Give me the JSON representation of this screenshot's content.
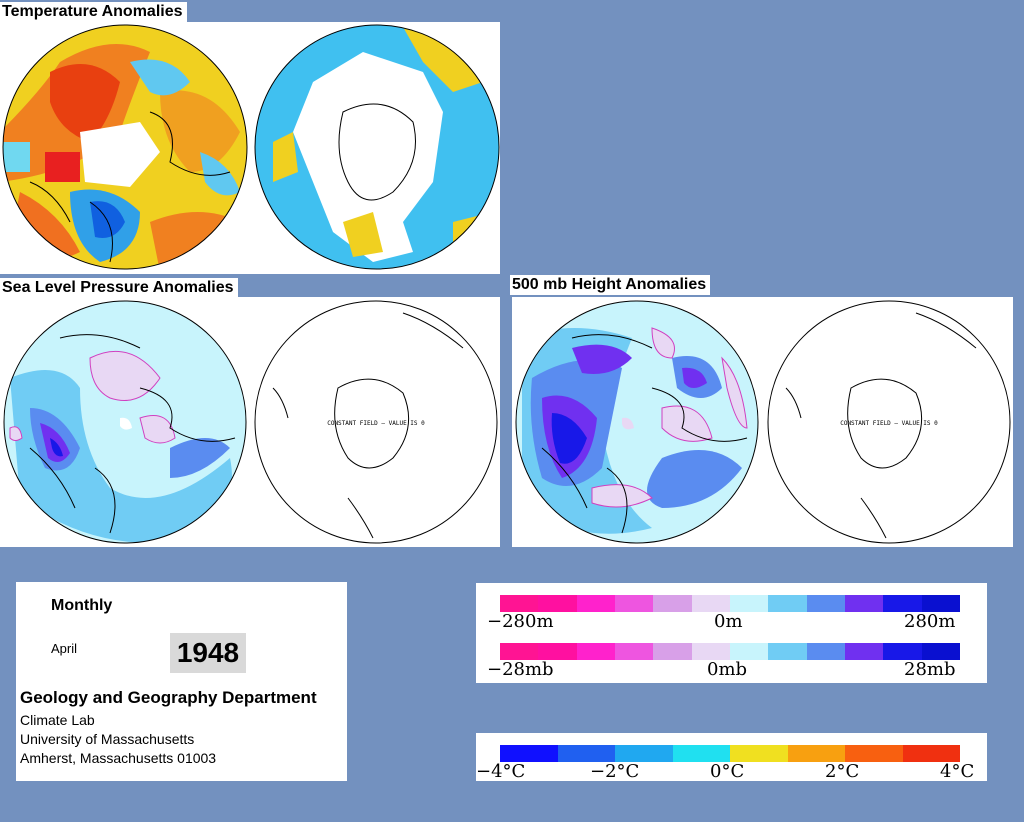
{
  "panels": {
    "temperature": {
      "title": "Temperature Anomalies"
    },
    "slp": {
      "title": "Sea Level Pressure Anomalies",
      "constant_field_label": "CONSTANT FIELD – VALUE IS 0"
    },
    "height500": {
      "title": "500 mb Height Anomalies",
      "constant_field_label": "CONSTANT FIELD – VALUE IS 0"
    }
  },
  "info": {
    "period": "Monthly",
    "month": "April",
    "year": "1948",
    "department": "Geology and Geography Department",
    "lab": "Climate Lab",
    "university": "University of Massachusetts",
    "address": "Amherst, Massachusetts 01003"
  },
  "legends": {
    "height": {
      "ticks": [
        "−280m",
        "0m",
        "280m"
      ]
    },
    "pressure": {
      "ticks": [
        "−28mb",
        "0mb",
        "28mb"
      ]
    },
    "temperature": {
      "ticks": [
        "−4°C",
        "−2°C",
        "0°C",
        "2°C",
        "4°C"
      ]
    }
  },
  "colors": {
    "background": "#7391bf",
    "anomaly_scale": [
      "#ff1493",
      "#ff10a0",
      "#ff22cc",
      "#ee55e0",
      "#d8a0e8",
      "#e8d8f4",
      "#c8f4fc",
      "#70ccf4",
      "#5a8cf0",
      "#7030f0",
      "#1818e8",
      "#0a10d0"
    ],
    "temperature_scale": [
      "#1010ff",
      "#2060f0",
      "#20a8f0",
      "#20e0f0",
      "#f0e020",
      "#f8a010",
      "#f86010",
      "#f03010"
    ]
  }
}
